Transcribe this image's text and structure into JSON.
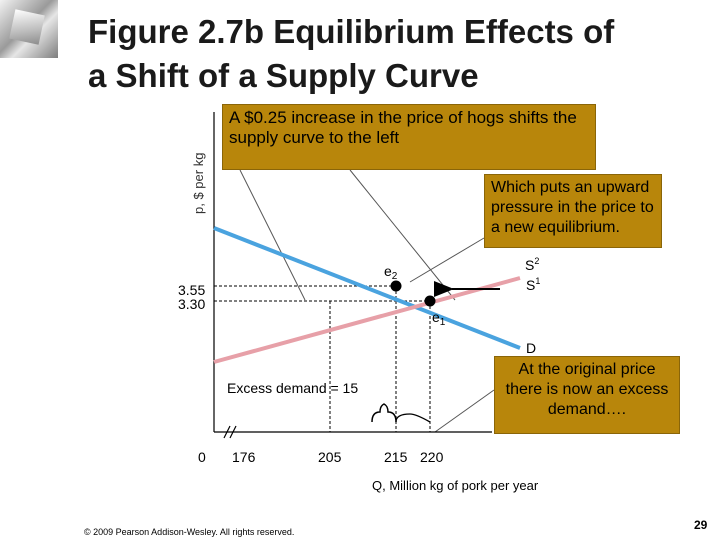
{
  "slide": {
    "title_line1": "Figure 2.7b  Equilibrium Effects of",
    "title_line2": "a Shift of a Supply Curve",
    "footer": "© 2009 Pearson Addison-Wesley. All rights reserved.",
    "page_number": "29",
    "logo_icon": "glass-cube-icon"
  },
  "callouts": {
    "shift": "A $0.25 increase in the price of hogs shifts the supply curve to the left",
    "pressure": "Which puts an upward pressure in the price to a new equilibrium.",
    "excess": "At the original price there is now an excess demand…."
  },
  "colors": {
    "demand": "#4aa3df",
    "supply": "#e7a0a8",
    "callout_bg": "#b8860b",
    "title": "#1a1a1a"
  },
  "chart_data": {
    "type": "line",
    "xlabel": "Q, Million kg of pork per year",
    "ylabel": "p, $ per kg",
    "x_ticks": [
      "0",
      "176",
      "205",
      "215",
      "220"
    ],
    "y_ticks": [
      "3.55",
      "3.30"
    ],
    "series": [
      {
        "name": "D",
        "x": [
          162,
          237
        ],
        "y": [
          3.71,
          3.11
        ]
      },
      {
        "name": "S1",
        "x": [
          190,
          246
        ],
        "y": [
          2.79,
          3.49
        ]
      },
      {
        "name": "S2",
        "label": "S",
        "label_sup": "2"
      }
    ],
    "series_labels": {
      "s2": "S",
      "s2_sup": "2",
      "s1": "S",
      "s1_sup": "1",
      "d": "D"
    },
    "points": [
      {
        "label": "e",
        "sub": "2",
        "x": 215,
        "y": 3.55
      },
      {
        "label": "e",
        "sub": "1",
        "x": 220,
        "y": 3.3
      }
    ],
    "annotation": {
      "text": "Excess demand = 15",
      "from": 205,
      "to": 220,
      "at_price": 3.3
    },
    "grid": false,
    "axis_break": true,
    "arrow": "leftward shift of supply"
  }
}
